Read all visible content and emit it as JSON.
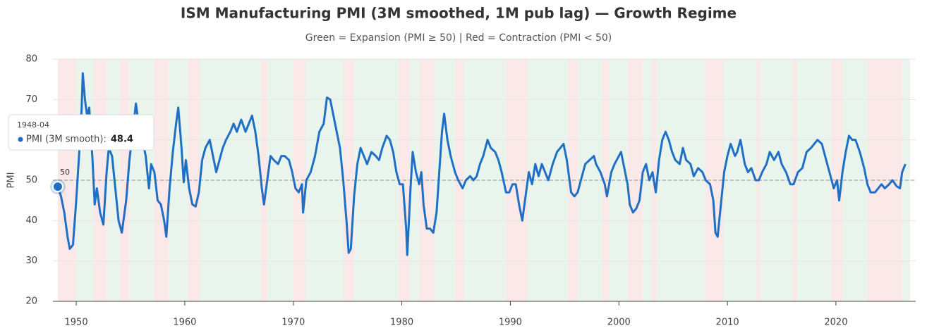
{
  "chart_data": {
    "type": "line",
    "title": "ISM Manufacturing PMI (3M smoothed, 1M pub lag) — Growth Regime",
    "subtitle": "Green = Expansion (PMI ≥ 50) | Red = Contraction (PMI < 50)",
    "ylabel": "PMI",
    "color": "#1f6fc5",
    "expansion_color": "#e9f5ec",
    "contraction_color": "#fbe8e8",
    "xlim": [
      1947.85,
      2027.35
    ],
    "xticks": [
      1950,
      1960,
      1970,
      1980,
      1990,
      2000,
      2010,
      2020
    ],
    "ylim": [
      20,
      80
    ],
    "yticks": [
      20,
      30,
      40,
      50,
      60,
      70,
      80
    ],
    "grid": true,
    "reference_line": 50,
    "contractions": [
      [
        1948.3,
        1950.0
      ],
      [
        1951.6,
        1952.8
      ],
      [
        1954.0,
        1954.9
      ],
      [
        1957.2,
        1958.5
      ],
      [
        1960.3,
        1961.4
      ],
      [
        1967.0,
        1967.6
      ],
      [
        1970.0,
        1971.1
      ],
      [
        1974.6,
        1975.6
      ],
      [
        1979.7,
        1980.7
      ],
      [
        1981.6,
        1983.0
      ],
      [
        1984.9,
        1985.7
      ],
      [
        1989.6,
        1991.6
      ],
      [
        1995.3,
        1996.2
      ],
      [
        1998.5,
        1999.1
      ],
      [
        2000.8,
        2002.2
      ],
      [
        2003.0,
        2003.5
      ],
      [
        2008.0,
        2009.6
      ],
      [
        2012.7,
        2013.0
      ],
      [
        2016.0,
        2016.4
      ],
      [
        2019.6,
        2020.6
      ],
      [
        2022.9,
        2026.1
      ]
    ],
    "x": [
      1948.3,
      1948.6,
      1948.9,
      1949.2,
      1949.4,
      1949.7,
      1950.0,
      1950.3,
      1950.5,
      1950.6,
      1950.8,
      1951.0,
      1951.2,
      1951.5,
      1951.7,
      1951.9,
      1952.2,
      1952.5,
      1952.8,
      1953.0,
      1953.3,
      1953.6,
      1953.9,
      1954.2,
      1954.6,
      1954.9,
      1955.2,
      1955.5,
      1955.8,
      1956.1,
      1956.4,
      1956.7,
      1956.9,
      1957.2,
      1957.5,
      1957.8,
      1958.1,
      1958.3,
      1958.6,
      1958.9,
      1959.2,
      1959.4,
      1959.7,
      1959.9,
      1960.1,
      1960.4,
      1960.7,
      1961.0,
      1961.3,
      1961.6,
      1961.9,
      1962.3,
      1962.6,
      1962.9,
      1963.2,
      1963.5,
      1963.8,
      1964.2,
      1964.5,
      1964.8,
      1965.2,
      1965.6,
      1965.9,
      1966.2,
      1966.5,
      1966.8,
      1967.1,
      1967.3,
      1967.6,
      1967.9,
      1968.2,
      1968.6,
      1968.9,
      1969.2,
      1969.6,
      1969.9,
      1970.2,
      1970.5,
      1970.8,
      1970.9,
      1971.2,
      1971.6,
      1972.0,
      1972.4,
      1972.8,
      1973.1,
      1973.4,
      1973.7,
      1974.0,
      1974.3,
      1974.6,
      1974.9,
      1975.1,
      1975.3,
      1975.6,
      1975.9,
      1976.2,
      1976.5,
      1976.8,
      1977.2,
      1977.6,
      1977.9,
      1978.2,
      1978.6,
      1978.9,
      1979.2,
      1979.5,
      1979.8,
      1980.1,
      1980.4,
      1980.5,
      1980.8,
      1981.0,
      1981.3,
      1981.6,
      1981.8,
      1982.0,
      1982.3,
      1982.6,
      1982.9,
      1983.2,
      1983.5,
      1983.7,
      1983.9,
      1984.2,
      1984.5,
      1984.9,
      1985.2,
      1985.6,
      1985.9,
      1986.3,
      1986.6,
      1986.9,
      1987.2,
      1987.5,
      1987.9,
      1988.2,
      1988.6,
      1988.9,
      1989.2,
      1989.6,
      1989.9,
      1990.2,
      1990.5,
      1990.8,
      1991.1,
      1991.4,
      1991.7,
      1992.0,
      1992.3,
      1992.6,
      1992.9,
      1993.2,
      1993.5,
      1993.9,
      1994.3,
      1994.6,
      1994.9,
      1995.2,
      1995.6,
      1995.9,
      1996.2,
      1996.6,
      1996.9,
      1997.3,
      1997.7,
      1997.9,
      1998.3,
      1998.7,
      1998.9,
      1999.3,
      1999.6,
      2000.0,
      2000.2,
      2000.5,
      2000.8,
      2001.0,
      2001.3,
      2001.6,
      2001.9,
      2002.2,
      2002.5,
      2002.8,
      2003.1,
      2003.4,
      2003.7,
      2004.0,
      2004.3,
      2004.6,
      2004.9,
      2005.2,
      2005.6,
      2005.9,
      2006.2,
      2006.6,
      2006.9,
      2007.3,
      2007.7,
      2008.0,
      2008.4,
      2008.7,
      2008.9,
      2009.1,
      2009.4,
      2009.7,
      2010.0,
      2010.3,
      2010.7,
      2010.9,
      2011.2,
      2011.6,
      2011.9,
      2012.2,
      2012.6,
      2012.9,
      2013.2,
      2013.6,
      2013.9,
      2014.3,
      2014.7,
      2015.0,
      2015.4,
      2015.8,
      2016.1,
      2016.5,
      2016.9,
      2017.3,
      2017.7,
      2018.0,
      2018.3,
      2018.7,
      2019.0,
      2019.4,
      2019.8,
      2020.1,
      2020.3,
      2020.6,
      2020.9,
      2021.2,
      2021.5,
      2021.8,
      2022.2,
      2022.6,
      2022.9,
      2023.2,
      2023.6,
      2023.9,
      2024.2,
      2024.5,
      2024.9,
      2025.2,
      2025.6,
      2025.9,
      2026.1,
      2026.4
    ],
    "values": [
      48.4,
      46,
      42,
      36,
      33,
      34,
      45,
      58,
      68,
      76.5,
      70,
      66,
      68,
      55,
      44,
      48,
      42,
      39,
      52,
      58,
      56,
      48,
      40,
      37,
      45,
      55,
      62,
      69,
      63,
      60,
      56,
      48,
      54,
      52,
      45,
      44,
      40,
      36,
      48,
      57,
      64,
      68,
      58,
      49.5,
      55,
      48,
      44,
      43.5,
      47,
      55,
      58,
      60,
      56,
      52,
      55,
      58,
      60,
      62,
      64,
      62,
      65,
      62,
      64,
      66,
      62,
      56,
      48,
      44,
      50,
      56,
      55,
      54,
      56,
      56,
      55,
      52,
      48,
      47,
      49,
      42,
      50,
      52,
      56,
      62,
      64,
      70.5,
      70,
      66,
      62,
      58,
      50,
      40,
      32,
      33,
      46,
      54,
      58,
      56,
      54,
      57,
      56,
      55,
      58,
      61,
      60,
      57,
      52,
      49,
      49,
      38,
      31.5,
      48,
      57,
      52,
      49,
      52,
      44,
      38,
      38,
      37,
      42,
      54,
      62,
      66.5,
      60,
      56,
      52,
      50,
      48,
      50,
      51,
      50,
      51,
      54,
      56,
      60,
      58,
      57,
      55,
      52,
      47,
      47,
      49,
      49,
      44,
      40,
      46,
      52,
      49,
      54,
      51,
      54,
      52,
      50,
      54,
      57,
      58,
      59,
      55,
      47,
      46,
      47,
      51,
      54,
      55,
      56,
      54,
      52,
      49,
      46,
      52,
      54,
      56,
      57,
      53,
      49,
      44,
      42,
      43,
      45,
      52,
      54,
      50,
      52,
      47,
      55,
      60,
      62,
      60,
      57,
      55,
      54,
      58,
      55,
      54,
      51,
      53,
      52,
      50,
      49,
      45,
      37,
      36,
      44,
      52,
      56,
      59,
      56,
      57,
      60,
      54,
      52,
      53,
      50,
      50,
      52,
      54,
      57,
      55,
      57,
      54,
      52,
      49,
      49,
      52,
      53,
      57,
      58,
      59,
      60,
      59,
      56,
      52,
      48,
      50,
      45,
      52,
      57,
      61,
      60,
      60,
      57,
      53,
      49,
      47,
      47,
      48,
      49,
      48,
      49,
      50,
      48.5,
      48,
      52,
      54
    ],
    "tooltip": {
      "date": "1948-04",
      "label": "PMI (3M smooth):",
      "value": 48.4
    }
  }
}
